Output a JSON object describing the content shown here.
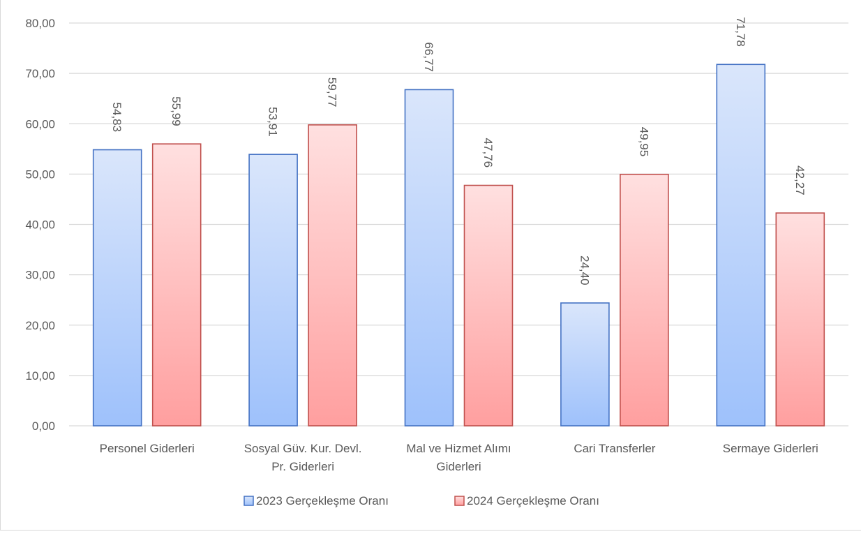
{
  "chart_data": {
    "type": "bar",
    "categories": [
      [
        "Personel Giderleri"
      ],
      [
        "Sosyal Güv. Kur. Devl.",
        "Pr. Giderleri"
      ],
      [
        "Mal ve Hizmet Alımı",
        "Giderleri"
      ],
      [
        "Cari Transferler"
      ],
      [
        "Sermaye Giderleri"
      ]
    ],
    "series": [
      {
        "name": "2023 Gerçekleşme Oranı",
        "values": [
          54.83,
          53.91,
          66.77,
          24.4,
          71.78
        ],
        "labels": [
          "54,83",
          "53,91",
          "66,77",
          "24,40",
          "71,78"
        ],
        "fill_top": "#dae6fb",
        "fill_bottom": "#9ec1fb",
        "stroke": "#4472c4"
      },
      {
        "name": "2024 Gerçekleşme Oranı",
        "values": [
          55.99,
          59.77,
          47.76,
          49.95,
          42.27
        ],
        "labels": [
          "55,99",
          "59,77",
          "47,76",
          "49,95",
          "42,27"
        ],
        "fill_top": "#ffe0e0",
        "fill_bottom": "#ff9f9f",
        "stroke": "#c0504d"
      }
    ],
    "ylim": [
      0,
      80
    ],
    "yticks": [
      0,
      10,
      20,
      30,
      40,
      50,
      60,
      70,
      80
    ],
    "ytick_labels": [
      "0,00",
      "10,00",
      "20,00",
      "30,00",
      "40,00",
      "50,00",
      "60,00",
      "70,00",
      "80,00"
    ],
    "grid": true,
    "legend_position": "bottom",
    "gridline_color": "#d9d9d9",
    "text_color": "#595959"
  }
}
